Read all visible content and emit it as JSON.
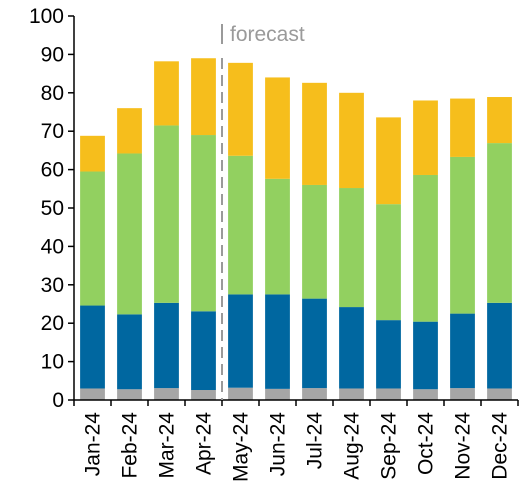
{
  "chart_data": {
    "type": "bar",
    "stacked": true,
    "categories": [
      "Jan-24",
      "Feb-24",
      "Mar-24",
      "Apr-24",
      "May-24",
      "Jun-24",
      "Jul-24",
      "Aug-24",
      "Sep-24",
      "Oct-24",
      "Nov-24",
      "Dec-24"
    ],
    "series": [
      {
        "color": "#a6a6a6",
        "values": [
          3.0,
          2.8,
          3.1,
          2.6,
          3.2,
          2.9,
          3.1,
          3.0,
          3.0,
          2.8,
          3.1,
          3.0
        ]
      },
      {
        "color": "#0067a0",
        "values": [
          21.6,
          19.5,
          22.2,
          20.5,
          24.3,
          24.6,
          23.3,
          21.2,
          17.8,
          17.6,
          19.4,
          22.3
        ]
      },
      {
        "color": "#92d060",
        "values": [
          34.9,
          41.9,
          46.2,
          45.9,
          36.1,
          30.1,
          29.6,
          31.0,
          30.2,
          38.2,
          40.8,
          41.6
        ]
      },
      {
        "color": "#f6be1c",
        "values": [
          9.3,
          11.8,
          16.7,
          20.0,
          24.2,
          26.4,
          26.6,
          24.8,
          22.6,
          19.4,
          15.2,
          12.0
        ]
      }
    ],
    "ylim": [
      0,
      100
    ],
    "yticks": [
      0,
      10,
      20,
      30,
      40,
      50,
      60,
      70,
      80,
      90,
      100
    ],
    "grid": false,
    "forecast": {
      "label": "forecast",
      "after_index": 3
    }
  }
}
